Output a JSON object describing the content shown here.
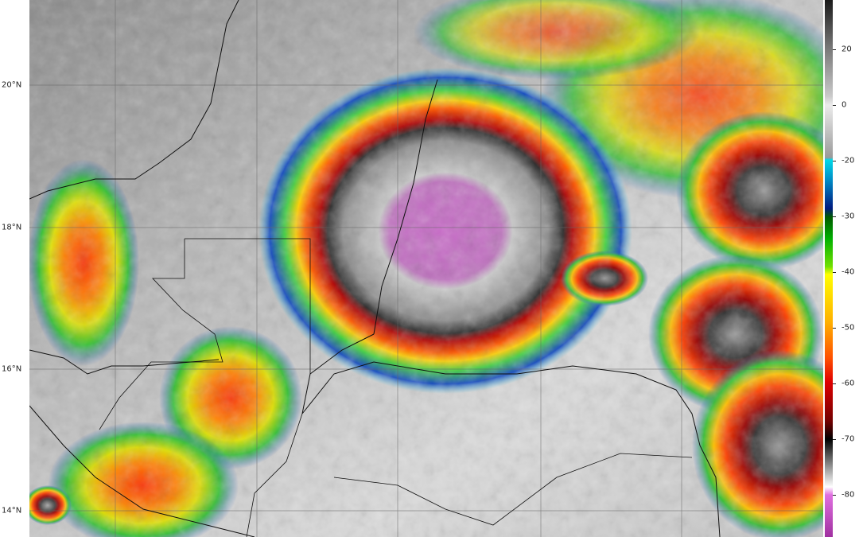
{
  "map": {
    "lat_labels": [
      "20°N",
      "18°N",
      "16°N",
      "14°N"
    ],
    "colorbar": {
      "ticks": [
        20,
        0,
        -20,
        -30,
        -40,
        -50,
        -60,
        -70,
        -80
      ]
    }
  }
}
